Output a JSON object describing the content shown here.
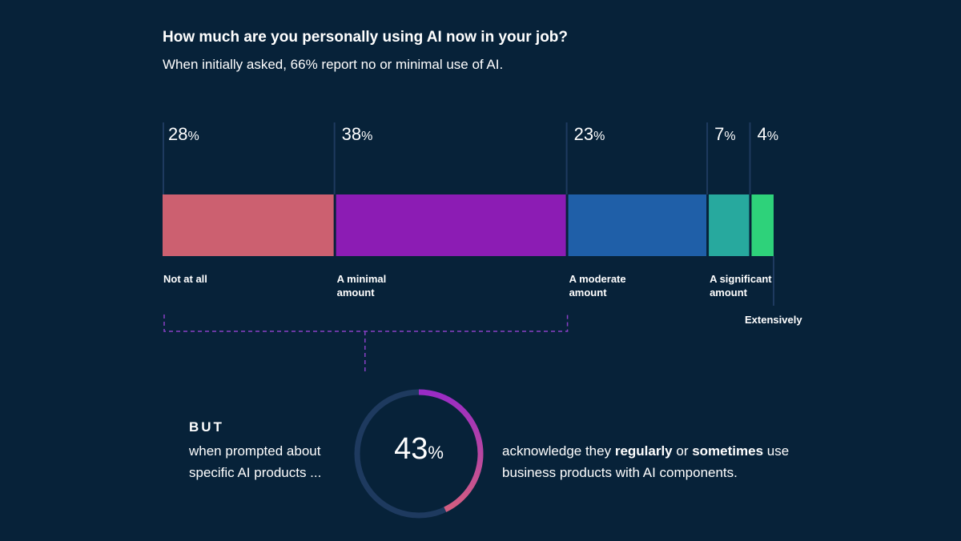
{
  "chart_data": {
    "type": "bar",
    "orientation": "stacked-horizontal",
    "title": "How much are you personally using AI now in your job?",
    "subtitle": "When initially asked, 66% report no or minimal use of AI.",
    "categories": [
      "Not at all",
      "A minimal amount",
      "A moderate amount",
      "A significant amount",
      "Extensively"
    ],
    "values": [
      28,
      38,
      23,
      7,
      4
    ],
    "unit": "%",
    "colors": [
      "#cc6070",
      "#8c1cb4",
      "#1f5fa8",
      "#27a99e",
      "#2ed27a"
    ],
    "bracket_groups": [
      "Not at all",
      "A minimal amount"
    ],
    "callout": {
      "label": "BUT",
      "left_text": "when prompted about specific AI products ...",
      "value": 43,
      "unit": "%",
      "right_text_parts": [
        "acknowledge they ",
        "regularly",
        " or ",
        "sometimes",
        " use business products with AI components."
      ],
      "ring_colors": [
        "#9a2bc6",
        "#d35e80"
      ],
      "ring_track_color": "#1e3a5f"
    }
  }
}
